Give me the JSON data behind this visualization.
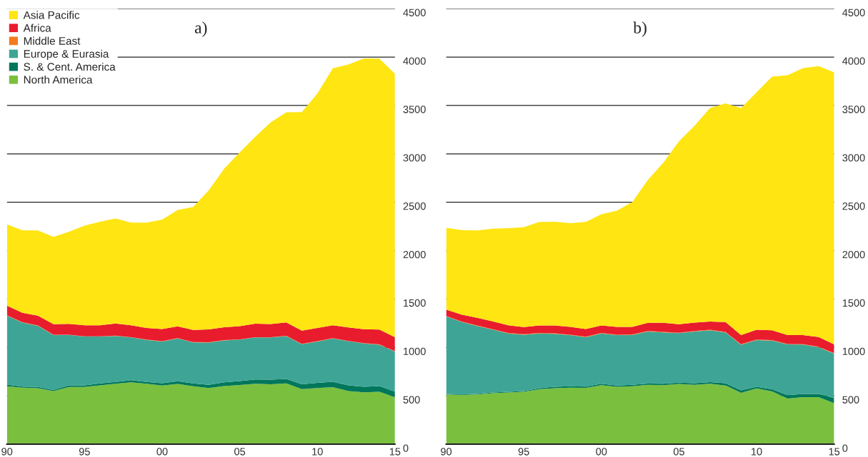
{
  "chart_data": [
    {
      "type": "area",
      "title": "a)",
      "stacked": true,
      "legend": "top left",
      "grid": "y",
      "x": [
        1990,
        1991,
        1992,
        1993,
        1994,
        1995,
        1996,
        1997,
        1998,
        1999,
        2000,
        2001,
        2002,
        2003,
        2004,
        2005,
        2006,
        2007,
        2008,
        2009,
        2010,
        2011,
        2012,
        2013,
        2014,
        2015
      ],
      "xlim": [
        1990,
        2015
      ],
      "xticks": [
        {
          "value": 1990,
          "label": "90"
        },
        {
          "value": 1995,
          "label": "95"
        },
        {
          "value": 2000,
          "label": "00"
        },
        {
          "value": 2005,
          "label": "05"
        },
        {
          "value": 2010,
          "label": "10"
        },
        {
          "value": 2015,
          "label": "15"
        }
      ],
      "ylim": [
        0,
        4500
      ],
      "yticks": [
        0,
        500,
        1000,
        1500,
        2000,
        2500,
        3000,
        3500,
        4000,
        4500
      ],
      "series": [
        {
          "name": "North America",
          "color": "#7bbf3f",
          "values": [
            598,
            584,
            578,
            550,
            592,
            592,
            609,
            625,
            639,
            625,
            606,
            623,
            598,
            581,
            600,
            611,
            625,
            620,
            628,
            570,
            581,
            589,
            550,
            537,
            542,
            486
          ]
        },
        {
          "name": "S. & Cent. America",
          "color": "#00775a",
          "values": [
            17,
            11,
            14,
            11,
            17,
            17,
            19,
            19,
            22,
            19,
            25,
            28,
            31,
            33,
            39,
            42,
            44,
            47,
            47,
            50,
            53,
            56,
            58,
            56,
            58,
            58
          ]
        },
        {
          "name": "Europe & Eurasia",
          "color": "#3ea596",
          "values": [
            714,
            662,
            631,
            567,
            520,
            503,
            484,
            475,
            442,
            434,
            431,
            442,
            423,
            436,
            434,
            428,
            434,
            436,
            442,
            414,
            428,
            448,
            456,
            448,
            428,
            414
          ]
        },
        {
          "name": "Middle East",
          "color": "#f47b20",
          "values": [
            3,
            3,
            3,
            3,
            3,
            3,
            3,
            3,
            3,
            3,
            3,
            3,
            3,
            3,
            3,
            3,
            3,
            3,
            3,
            3,
            3,
            3,
            3,
            3,
            3,
            3
          ]
        },
        {
          "name": "Africa",
          "color": "#e81c2d",
          "values": [
            100,
            97,
            103,
            108,
            111,
            114,
            114,
            125,
            122,
            120,
            125,
            122,
            125,
            133,
            133,
            136,
            139,
            136,
            139,
            136,
            136,
            133,
            139,
            145,
            153,
            145
          ]
        },
        {
          "name": "Asia Pacific",
          "color": "#ffe512",
          "values": [
            839,
            854,
            880,
            904,
            952,
            1030,
            1070,
            1085,
            1061,
            1089,
            1131,
            1202,
            1272,
            1436,
            1638,
            1796,
            1932,
            2084,
            2171,
            2258,
            2422,
            2656,
            2717,
            2796,
            2799,
            2721
          ]
        }
      ]
    },
    {
      "type": "area",
      "title": "b)",
      "stacked": true,
      "grid": "y",
      "x": [
        1990,
        1991,
        1992,
        1993,
        1994,
        1995,
        1996,
        1997,
        1998,
        1999,
        2000,
        2001,
        2002,
        2003,
        2004,
        2005,
        2006,
        2007,
        2008,
        2009,
        2010,
        2011,
        2012,
        2013,
        2014,
        2015
      ],
      "xlim": [
        1990,
        2015
      ],
      "xticks": [
        {
          "value": 1990,
          "label": "90"
        },
        {
          "value": 1995,
          "label": "95"
        },
        {
          "value": 2000,
          "label": "00"
        },
        {
          "value": 2005,
          "label": "05"
        },
        {
          "value": 2010,
          "label": "10"
        },
        {
          "value": 2015,
          "label": "15"
        }
      ],
      "ylim": [
        0,
        4500
      ],
      "yticks": [
        0,
        500,
        1000,
        1500,
        2000,
        2500,
        3000,
        3500,
        4000,
        4500
      ],
      "series": [
        {
          "color": "#7bbf3f",
          "values": [
            514,
            508,
            514,
            528,
            534,
            542,
            568,
            579,
            585,
            582,
            610,
            593,
            599,
            613,
            610,
            622,
            613,
            624,
            607,
            531,
            576,
            545,
            472,
            486,
            486,
            424
          ]
        },
        {
          "color": "#00775a",
          "values": [
            6,
            6,
            6,
            6,
            8,
            8,
            11,
            14,
            14,
            14,
            14,
            14,
            14,
            14,
            14,
            14,
            17,
            17,
            23,
            25,
            17,
            23,
            34,
            34,
            34,
            54
          ]
        },
        {
          "color": "#3ea596",
          "values": [
            800,
            749,
            701,
            650,
            602,
            582,
            565,
            548,
            528,
            509,
            520,
            520,
            517,
            537,
            531,
            511,
            534,
            537,
            525,
            472,
            483,
            503,
            525,
            509,
            483,
            458
          ]
        },
        {
          "color": "#f47b20",
          "values": [
            5,
            5,
            5,
            5,
            5,
            5,
            5,
            5,
            5,
            5,
            5,
            5,
            5,
            5,
            5,
            5,
            5,
            5,
            5,
            5,
            5,
            5,
            5,
            5,
            5,
            5
          ]
        },
        {
          "color": "#e81c2d",
          "values": [
            66,
            71,
            80,
            80,
            80,
            74,
            77,
            80,
            80,
            80,
            77,
            80,
            77,
            85,
            94,
            88,
            88,
            85,
            102,
            94,
            102,
            102,
            91,
            94,
            100,
            91
          ]
        },
        {
          "color": "#ffe512",
          "values": [
            846,
            874,
            903,
            957,
            1004,
            1030,
            1070,
            1073,
            1072,
            1107,
            1150,
            1201,
            1292,
            1477,
            1656,
            1889,
            2032,
            2206,
            2259,
            2347,
            2452,
            2620,
            2685,
            2759,
            2799,
            2810
          ]
        }
      ]
    }
  ]
}
